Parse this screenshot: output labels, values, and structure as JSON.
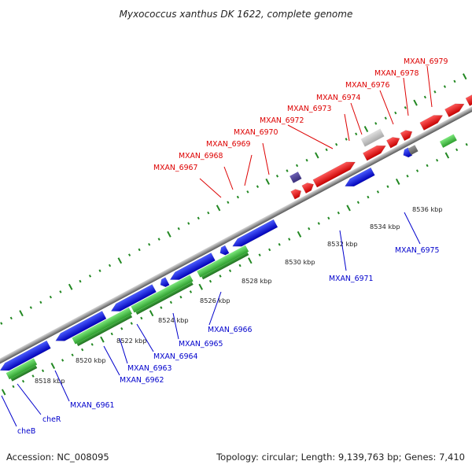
{
  "title": "Myxococcus xanthus DK 1622, complete genome",
  "footer": {
    "accession": "Accession: NC_008095",
    "stats": "Topology: circular; Length: 9,139,763 bp; Genes: 7,410"
  },
  "colors": {
    "forward_label": "#dd0000",
    "reverse_label": "#0000cc",
    "cds_forward": "#ee0000",
    "cds_reverse": "#0000dd",
    "cog_green": "#44cc44",
    "backbone": "#8c8c8c",
    "tick": "#228822"
  },
  "ticks": [
    {
      "label": "8518 kbp"
    },
    {
      "label": "8520 kbp"
    },
    {
      "label": "8522 kbp"
    },
    {
      "label": "8524 kbp"
    },
    {
      "label": "8526 kbp"
    },
    {
      "label": "8528 kbp"
    },
    {
      "label": "8530 kbp"
    },
    {
      "label": "8532 kbp"
    },
    {
      "label": "8534 kbp"
    },
    {
      "label": "8536 kbp"
    }
  ],
  "forward_labels": [
    {
      "text": "MXAN_6967"
    },
    {
      "text": "MXAN_6968"
    },
    {
      "text": "MXAN_6969"
    },
    {
      "text": "MXAN_6970"
    },
    {
      "text": "MXAN_6972"
    },
    {
      "text": "MXAN_6973"
    },
    {
      "text": "MXAN_6974"
    },
    {
      "text": "MXAN_6976"
    },
    {
      "text": "MXAN_6978"
    },
    {
      "text": "MXAN_6979"
    }
  ],
  "reverse_labels": [
    {
      "text": "cheB"
    },
    {
      "text": "cheR"
    },
    {
      "text": "MXAN_6961"
    },
    {
      "text": "MXAN_6962"
    },
    {
      "text": "MXAN_6963"
    },
    {
      "text": "MXAN_6964"
    },
    {
      "text": "MXAN_6965"
    },
    {
      "text": "MXAN_6966"
    },
    {
      "text": "MXAN_6971"
    },
    {
      "text": "MXAN_6975"
    }
  ]
}
